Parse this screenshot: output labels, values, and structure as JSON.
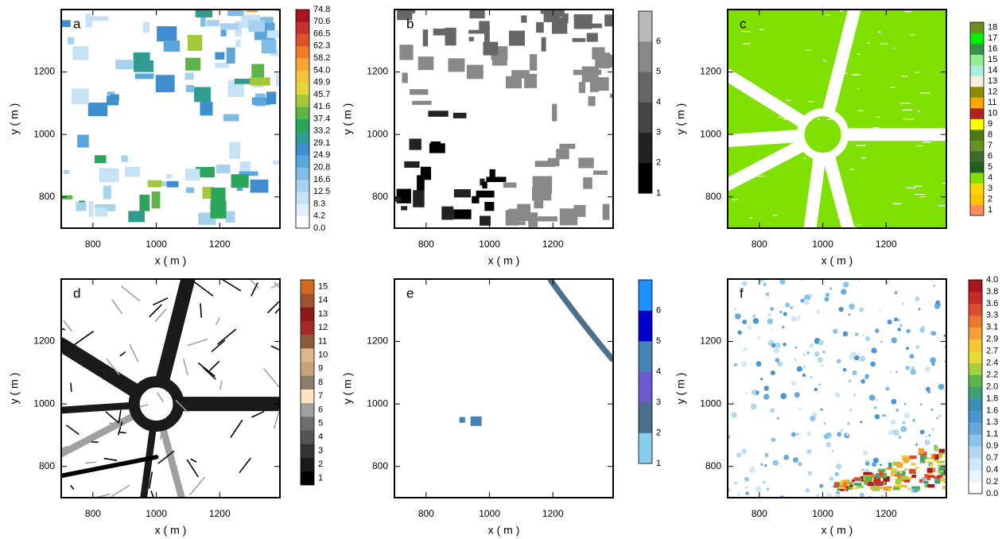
{
  "panels": [
    {
      "label": "a",
      "xlabel": "x ( m )",
      "ylabel": "y ( m )",
      "xlim": [
        700,
        1390
      ],
      "ylim": [
        700,
        1400
      ],
      "xticks": [
        800,
        1000,
        1200
      ],
      "yticks": [
        800,
        1000,
        1200
      ],
      "colorbar": {
        "placement": "edges",
        "labels": [
          "0.0",
          "4.2",
          "8.3",
          "12.5",
          "16.6",
          "20.8",
          "24.9",
          "29.1",
          "33.2",
          "37.4",
          "41.6",
          "45.7",
          "49.9",
          "54.0",
          "58.2",
          "62.3",
          "66.5",
          "70.6",
          "74.8"
        ],
        "colors": [
          "#ffffff",
          "#e0f0fa",
          "#c6e2f5",
          "#a6d2ee",
          "#7fbde6",
          "#5aa6dc",
          "#3f8fd0",
          "#2f9c8f",
          "#2ba55a",
          "#5bb548",
          "#a3c93a",
          "#e3d83a",
          "#f2c43a",
          "#f4a637",
          "#ef7b2d",
          "#e0512a",
          "#c9302a",
          "#a8141f"
        ]
      }
    },
    {
      "label": "b",
      "xlabel": "x ( m )",
      "ylabel": "y ( m )",
      "xlim": [
        700,
        1390
      ],
      "ylim": [
        700,
        1400
      ],
      "xticks": [
        800,
        1000,
        1200
      ],
      "yticks": [
        800,
        1000,
        1200
      ],
      "colorbar": {
        "placement": "edges",
        "labels": [
          "1",
          "2",
          "3",
          "4",
          "5",
          "6"
        ],
        "colors": [
          "#000000",
          "#222222",
          "#444444",
          "#666666",
          "#888888",
          "#b8b8b8"
        ]
      }
    },
    {
      "label": "c",
      "xlabel": "x ( m )",
      "ylabel": "y ( m )",
      "xlim": [
        700,
        1390
      ],
      "ylim": [
        700,
        1400
      ],
      "xticks": [
        800,
        1000,
        1200
      ],
      "yticks": [
        800,
        1000,
        1200
      ],
      "colorbar": {
        "placement": "centers",
        "labels": [
          "1",
          "2",
          "3",
          "4",
          "5",
          "6",
          "7",
          "8",
          "9",
          "10",
          "11",
          "12",
          "13",
          "14",
          "15",
          "16",
          "17",
          "18"
        ],
        "colors": [
          "#ff8c5a",
          "#ffc400",
          "#ffd700",
          "#80e000",
          "#1f5f1f",
          "#3e6b2a",
          "#6b8e23",
          "#4b7a10",
          "#ffff00",
          "#b22222",
          "#ffa500",
          "#8b8b00",
          "#f5f0dc",
          "#aaeedd",
          "#90ee90",
          "#3c8f4f",
          "#00ee00",
          "#6b8e23"
        ]
      }
    },
    {
      "label": "d",
      "xlabel": "x ( m )",
      "ylabel": "y ( m )",
      "xlim": [
        700,
        1390
      ],
      "ylim": [
        700,
        1400
      ],
      "xticks": [
        800,
        1000,
        1200
      ],
      "yticks": [
        800,
        1000,
        1200
      ],
      "colorbar": {
        "placement": "centers",
        "labels": [
          "1",
          "2",
          "3",
          "4",
          "5",
          "6",
          "7",
          "8",
          "9",
          "10",
          "11",
          "12",
          "13",
          "14",
          "15"
        ],
        "colors": [
          "#000000",
          "#1a1a1a",
          "#333333",
          "#555555",
          "#6e6e6e",
          "#a0a0a0",
          "#ffe4c4",
          "#8b7d6b",
          "#c8a27a",
          "#deb887",
          "#8b5a3c",
          "#a52a2a",
          "#8b1a1a",
          "#a0522d",
          "#d2691e"
        ]
      }
    },
    {
      "label": "e",
      "xlabel": "x ( m )",
      "ylabel": "y ( m )",
      "xlim": [
        700,
        1390
      ],
      "ylim": [
        700,
        1400
      ],
      "xticks": [
        800,
        1000,
        1200
      ],
      "yticks": [
        800,
        1000,
        1200
      ],
      "colorbar": {
        "placement": "edges",
        "labels": [
          "1",
          "2",
          "3",
          "4",
          "5",
          "6"
        ],
        "colors": [
          "#87ceeb",
          "#4a708b",
          "#6a5acd",
          "#4682b4",
          "#0000cd",
          "#1e90ff"
        ]
      }
    },
    {
      "label": "f",
      "xlabel": "x ( m )",
      "ylabel": "y ( m )",
      "xlim": [
        700,
        1390
      ],
      "ylim": [
        700,
        1400
      ],
      "xticks": [
        800,
        1000,
        1200
      ],
      "yticks": [
        800,
        1000,
        1200
      ],
      "colorbar": {
        "placement": "edges",
        "labels": [
          "0.0",
          "0.2",
          "0.4",
          "0.7",
          "0.9",
          "1.1",
          "1.3",
          "1.6",
          "1.8",
          "2.0",
          "2.2",
          "2.4",
          "2.7",
          "2.9",
          "3.1",
          "3.3",
          "3.6",
          "3.8",
          "4.0"
        ],
        "colors": [
          "#ffffff",
          "#e8f4fb",
          "#cfe7f6",
          "#b0d8f0",
          "#8cc3e8",
          "#66aadd",
          "#4a95cf",
          "#3a8fb0",
          "#3da07a",
          "#5bb548",
          "#a5cf3c",
          "#e6dc34",
          "#f5c534",
          "#f4a037",
          "#ec762e",
          "#dc4c2a",
          "#c52a26",
          "#a8141f"
        ]
      }
    }
  ]
}
